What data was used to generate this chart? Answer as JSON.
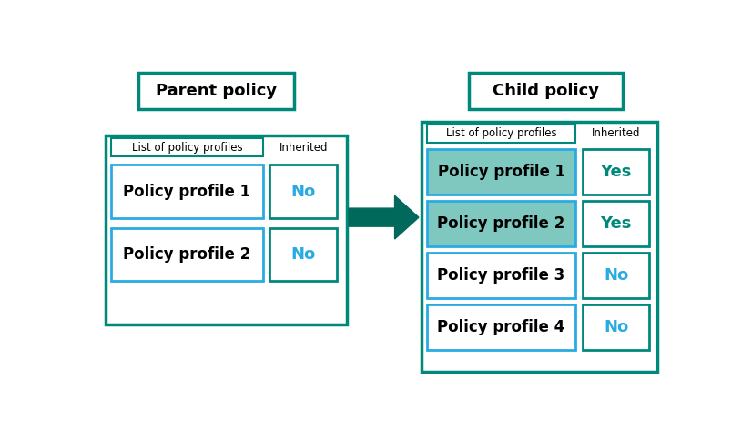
{
  "teal_border": "#00897B",
  "teal_dark": "#00897B",
  "arrow_color": "#00695C",
  "blue_border": "#29ABE2",
  "teal_fill": "#7EC8C0",
  "teal_text": "#00897B",
  "blue_text": "#29ABE2",
  "white_fill": "#FFFFFF",
  "bg_color": "#FFFFFF",
  "parent_label": "Parent policy",
  "child_label": "Child policy",
  "col1_header": "List of policy profiles",
  "col2_header": "Inherited",
  "parent_profiles": [
    "Policy profile 1",
    "Policy profile 2"
  ],
  "parent_inherited": [
    "No",
    "No"
  ],
  "child_profiles": [
    "Policy profile 1",
    "Policy profile 2",
    "Policy profile 3",
    "Policy profile 4"
  ],
  "child_inherited": [
    "Yes",
    "Yes",
    "No",
    "No"
  ],
  "child_is_inherited": [
    true,
    true,
    false,
    false
  ]
}
